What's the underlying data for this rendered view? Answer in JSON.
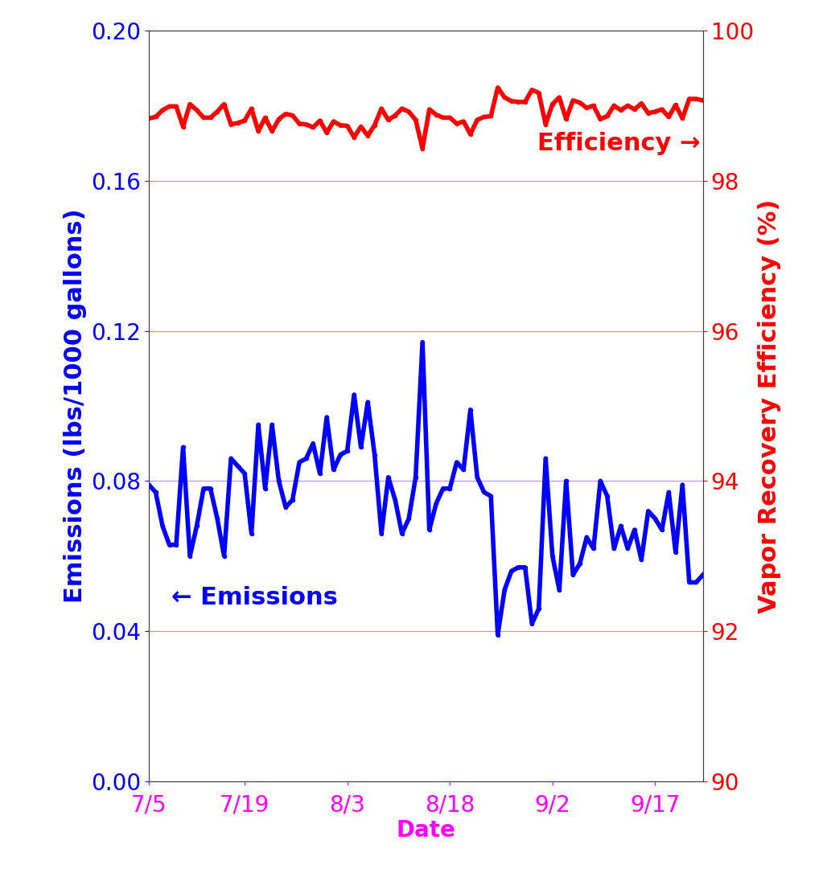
{
  "chart_data": {
    "type": "line",
    "x_label": "Date",
    "y_label": "Emissions (lbs/1000 gallons)",
    "y2_label": "Vapor Recovery Efficiency (%)",
    "annotations": [
      "Efficiency →",
      "← Emissions"
    ],
    "categories": [
      "7/5",
      null,
      null,
      null,
      null,
      null,
      null,
      null,
      null,
      null,
      null,
      null,
      null,
      null,
      "7/19",
      null,
      null,
      null,
      null,
      null,
      null,
      null,
      null,
      null,
      null,
      null,
      null,
      null,
      null,
      "8/3",
      null,
      null,
      null,
      null,
      null,
      null,
      null,
      null,
      null,
      null,
      null,
      null,
      null,
      null,
      "8/18",
      null,
      null,
      null,
      null,
      null,
      null,
      null,
      null,
      null,
      null,
      null,
      null,
      null,
      null,
      "9/2",
      null,
      null,
      null,
      null,
      null,
      null,
      null,
      null,
      null,
      null,
      null,
      null,
      null,
      null,
      "9/17",
      null,
      null,
      null,
      null,
      null,
      null,
      null
    ],
    "series": [
      {
        "name": "Emissions",
        "color": "#0000ff",
        "axis": "y",
        "values": [
          0.079,
          0.077,
          0.068,
          0.063,
          0.063,
          0.089,
          0.06,
          0.068,
          0.078,
          0.078,
          0.07,
          0.06,
          0.086,
          0.084,
          0.082,
          0.066,
          0.095,
          0.078,
          0.095,
          0.08,
          0.073,
          0.075,
          0.085,
          0.086,
          0.09,
          0.082,
          0.097,
          0.083,
          0.087,
          0.088,
          0.103,
          0.089,
          0.101,
          0.087,
          0.066,
          0.081,
          0.075,
          0.066,
          0.07,
          0.081,
          0.117,
          0.067,
          0.074,
          0.078,
          0.078,
          0.085,
          0.083,
          0.099,
          0.081,
          0.077,
          0.076,
          0.039,
          0.051,
          0.056,
          0.057,
          0.057,
          0.042,
          0.046,
          0.086,
          0.06,
          0.051,
          0.08,
          0.055,
          0.058,
          0.065,
          0.062,
          0.08,
          0.076,
          0.062,
          0.068,
          0.062,
          0.067,
          0.059,
          0.072,
          0.07,
          0.067,
          0.077,
          0.061,
          0.079,
          0.053,
          0.053,
          0.055
        ]
      },
      {
        "name": "Efficiency",
        "color": "#ff0000",
        "axis": "y2",
        "values": [
          98.83,
          98.85,
          98.94,
          98.99,
          98.99,
          98.72,
          99.02,
          98.94,
          98.84,
          98.84,
          98.92,
          99.02,
          98.75,
          98.77,
          98.8,
          98.96,
          98.66,
          98.84,
          98.66,
          98.82,
          98.89,
          98.87,
          98.76,
          98.75,
          98.71,
          98.8,
          98.64,
          98.79,
          98.74,
          98.73,
          98.58,
          98.72,
          98.6,
          98.74,
          98.96,
          98.81,
          98.87,
          98.96,
          98.92,
          98.81,
          98.43,
          98.95,
          98.88,
          98.84,
          98.84,
          98.76,
          98.79,
          98.62,
          98.81,
          98.85,
          98.86,
          99.24,
          99.11,
          99.06,
          99.05,
          99.05,
          99.21,
          99.17,
          98.75,
          99.02,
          99.11,
          98.82,
          99.07,
          99.04,
          98.97,
          99.0,
          98.82,
          98.86,
          99.0,
          98.94,
          99.0,
          98.95,
          99.03,
          98.9,
          98.92,
          98.95,
          98.85,
          99.01,
          98.83,
          99.09,
          99.09,
          99.07
        ]
      }
    ],
    "ylim": [
      0,
      0.2
    ],
    "yticks": [
      {
        "value": 0,
        "label": "0.00"
      },
      {
        "value": 0.04,
        "label": "0.04"
      },
      {
        "value": 0.08,
        "label": "0.08"
      },
      {
        "value": 0.12,
        "label": "0.12"
      },
      {
        "value": 0.16,
        "label": "0.16"
      },
      {
        "value": 0.2,
        "label": "0.20"
      }
    ],
    "y2lim": [
      90,
      100
    ],
    "y2ticks": [
      90,
      92,
      94,
      96,
      98,
      100
    ],
    "grid": true
  }
}
